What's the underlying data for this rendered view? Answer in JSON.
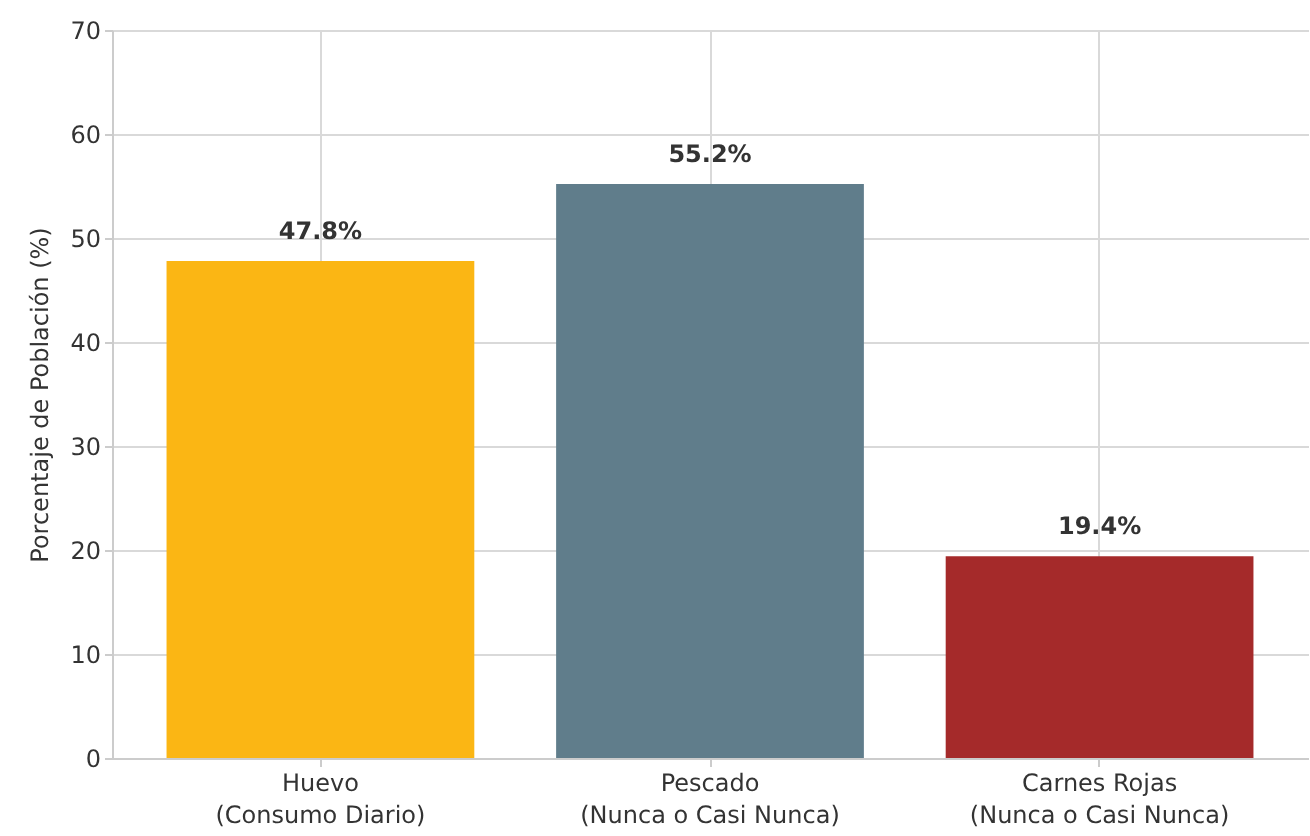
{
  "chart_data": {
    "type": "bar",
    "ylabel": "Porcentaje de Población (%)",
    "categories": [
      "Huevo\n(Consumo Diario)",
      "Pescado\n(Nunca o Casi Nunca)",
      "Carnes Rojas\n(Nunca o Casi Nunca)"
    ],
    "values": [
      47.8,
      55.2,
      19.4
    ],
    "colors": [
      "#fbb614",
      "#607d8b",
      "#a52a2a"
    ],
    "value_labels": [
      "47.8%",
      "55.2%",
      "19.4%"
    ],
    "ylim": [
      0,
      70
    ],
    "yticks": [
      0,
      10,
      20,
      30,
      40,
      50,
      60,
      70
    ],
    "grid": true
  }
}
